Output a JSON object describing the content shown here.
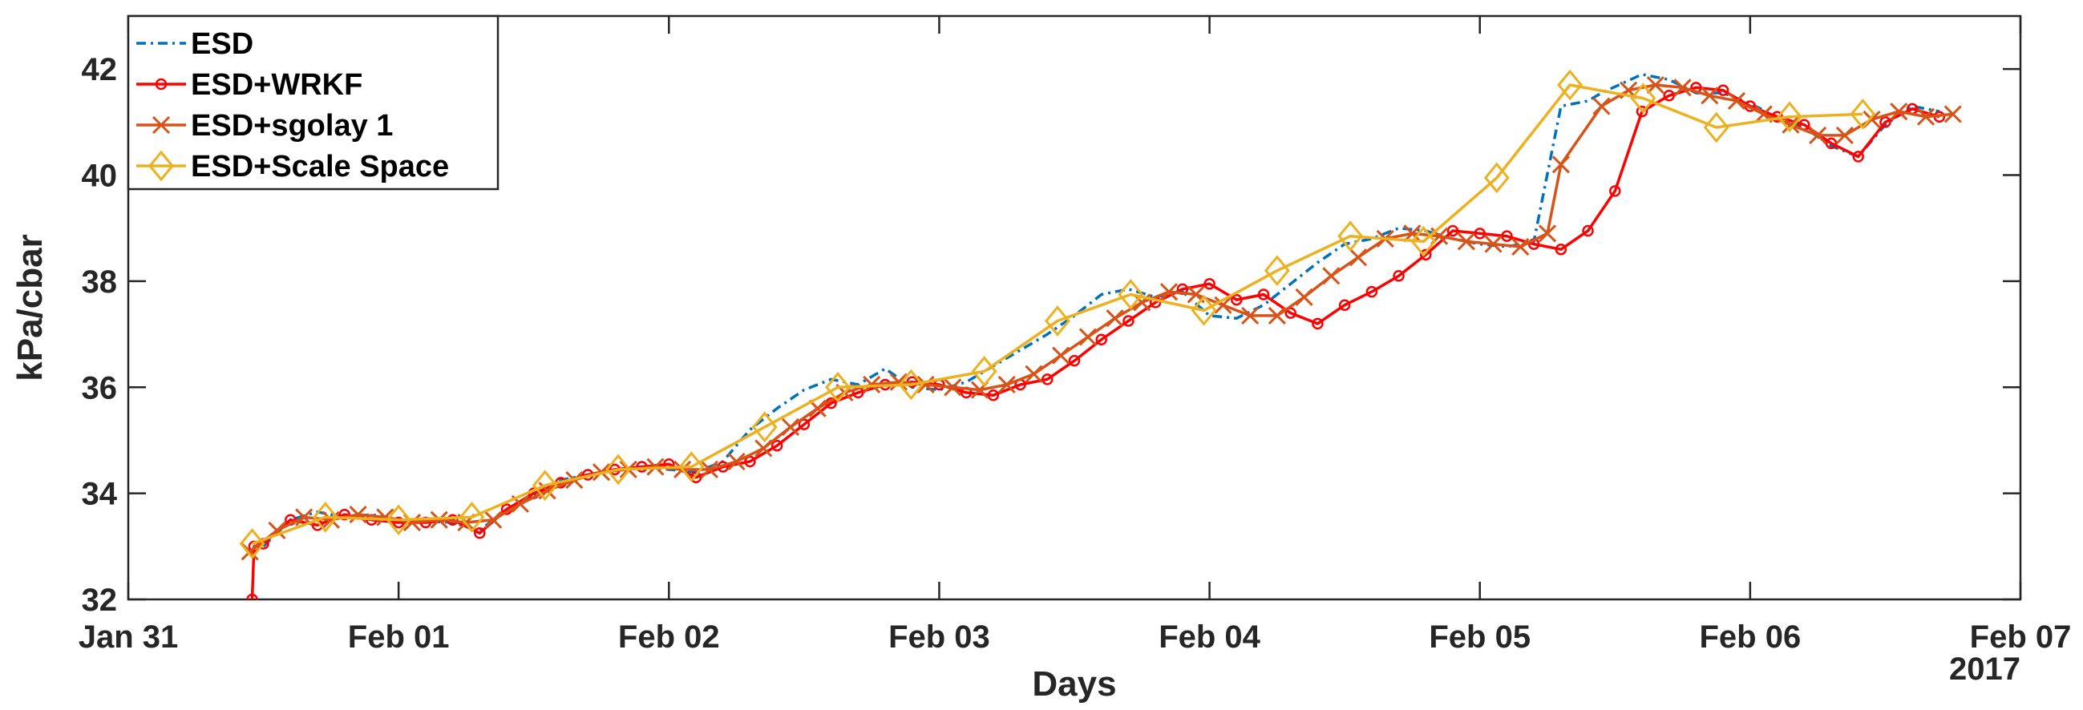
{
  "chart_data": {
    "type": "line",
    "xlabel": "Days",
    "ylabel": "kPa/cbar",
    "year_label": "2017",
    "x_unit": "day",
    "xlim": [
      "2017-01-31",
      "2017-02-07"
    ],
    "ylim": [
      32,
      43
    ],
    "x_ticks": [
      "2017-01-31",
      "2017-02-01",
      "2017-02-02",
      "2017-02-03",
      "2017-02-04",
      "2017-02-05",
      "2017-02-06",
      "2017-02-07"
    ],
    "x_tick_labels": [
      "Jan 31",
      "Feb 01",
      "Feb 02",
      "Feb 03",
      "Feb 04",
      "Feb 05",
      "Feb 06",
      "Feb 07"
    ],
    "y_ticks": [
      32,
      34,
      36,
      38,
      40,
      42
    ],
    "y_tick_labels": [
      "32",
      "34",
      "36",
      "38",
      "40",
      "42"
    ],
    "grid": false,
    "legend_position": "top-left",
    "series": [
      {
        "name": "ESD",
        "color": "#0072BD",
        "style": "dashdot",
        "marker": "none",
        "x": [
          "2017-01-31T12:00",
          "2017-01-31T14:24",
          "2017-01-31T16:48",
          "2017-01-31T19:12",
          "2017-01-31T21:36",
          "2017-02-01T00:00",
          "2017-02-01T04:48",
          "2017-02-01T07:12",
          "2017-02-01T09:36",
          "2017-02-01T12:00",
          "2017-02-01T14:24",
          "2017-02-01T16:48",
          "2017-02-01T19:12",
          "2017-02-01T21:36",
          "2017-02-02T02:24",
          "2017-02-02T04:48",
          "2017-02-02T07:12",
          "2017-02-02T09:36",
          "2017-02-02T12:00",
          "2017-02-02T14:24",
          "2017-02-02T16:48",
          "2017-02-02T19:12",
          "2017-02-02T21:36",
          "2017-02-03T00:00",
          "2017-02-03T02:24",
          "2017-02-03T04:48",
          "2017-02-03T07:12",
          "2017-02-03T09:36",
          "2017-02-03T12:00",
          "2017-02-03T14:24",
          "2017-02-03T16:48",
          "2017-02-03T19:12",
          "2017-02-03T21:36",
          "2017-02-04T00:00",
          "2017-02-04T02:24",
          "2017-02-04T04:48",
          "2017-02-04T07:12",
          "2017-02-04T09:36",
          "2017-02-04T12:00",
          "2017-02-04T14:24",
          "2017-02-04T16:48",
          "2017-02-04T19:12",
          "2017-02-04T21:36",
          "2017-02-05T00:00",
          "2017-02-05T02:24",
          "2017-02-05T04:48",
          "2017-02-05T07:12",
          "2017-02-05T09:36",
          "2017-02-05T10:48",
          "2017-02-05T14:24",
          "2017-02-05T16:48",
          "2017-02-05T19:12",
          "2017-02-05T21:36",
          "2017-02-06T00:00",
          "2017-02-06T02:24",
          "2017-02-06T04:48",
          "2017-02-06T07:12",
          "2017-02-06T09:36",
          "2017-02-06T12:00",
          "2017-02-06T14:24",
          "2017-02-06T16:48"
        ],
        "y": [
          33.0,
          33.5,
          33.65,
          33.55,
          33.6,
          33.5,
          33.45,
          33.3,
          33.7,
          33.95,
          34.25,
          34.35,
          34.45,
          34.5,
          34.4,
          34.6,
          35.2,
          35.6,
          35.95,
          36.15,
          36.05,
          36.35,
          36.0,
          35.95,
          36.1,
          36.4,
          36.7,
          37.0,
          37.35,
          37.75,
          37.85,
          37.7,
          37.8,
          37.35,
          37.3,
          37.55,
          37.95,
          38.35,
          38.7,
          38.8,
          39.0,
          38.95,
          38.8,
          38.7,
          38.65,
          38.75,
          41.3,
          41.4,
          41.55,
          41.9,
          41.8,
          41.55,
          41.55,
          41.35,
          41.1,
          40.9,
          40.55,
          40.35,
          40.95,
          41.3,
          41.2
        ]
      },
      {
        "name": "ESD+WRKF",
        "color": "#FF0000",
        "style": "solid",
        "marker": "circle",
        "x": [
          "2017-01-31T11:00",
          "2017-01-31T11:10",
          "2017-01-31T12:00",
          "2017-01-31T14:24",
          "2017-01-31T16:48",
          "2017-01-31T19:12",
          "2017-01-31T21:36",
          "2017-02-01T00:00",
          "2017-02-01T02:24",
          "2017-02-01T04:48",
          "2017-02-01T07:12",
          "2017-02-01T09:36",
          "2017-02-01T12:00",
          "2017-02-01T14:24",
          "2017-02-01T16:48",
          "2017-02-01T19:12",
          "2017-02-01T21:36",
          "2017-02-02T00:00",
          "2017-02-02T02:24",
          "2017-02-02T04:48",
          "2017-02-02T07:12",
          "2017-02-02T09:36",
          "2017-02-02T12:00",
          "2017-02-02T14:24",
          "2017-02-02T16:48",
          "2017-02-02T19:12",
          "2017-02-02T21:36",
          "2017-02-03T00:00",
          "2017-02-03T02:24",
          "2017-02-03T04:48",
          "2017-02-03T07:12",
          "2017-02-03T09:36",
          "2017-02-03T12:00",
          "2017-02-03T14:24",
          "2017-02-03T16:48",
          "2017-02-03T19:12",
          "2017-02-03T21:36",
          "2017-02-04T00:00",
          "2017-02-04T02:24",
          "2017-02-04T04:48",
          "2017-02-04T07:12",
          "2017-02-04T09:36",
          "2017-02-04T12:00",
          "2017-02-04T14:24",
          "2017-02-04T16:48",
          "2017-02-04T19:12",
          "2017-02-04T21:36",
          "2017-02-05T00:00",
          "2017-02-05T02:24",
          "2017-02-05T04:48",
          "2017-02-05T07:12",
          "2017-02-05T09:36",
          "2017-02-05T12:00",
          "2017-02-05T14:24",
          "2017-02-05T16:48",
          "2017-02-05T19:12",
          "2017-02-05T21:36",
          "2017-02-06T00:00",
          "2017-02-06T02:24",
          "2017-02-06T04:48",
          "2017-02-06T07:12",
          "2017-02-06T09:36",
          "2017-02-06T12:00",
          "2017-02-06T14:24",
          "2017-02-06T16:48"
        ],
        "y": [
          32.0,
          33.0,
          33.05,
          33.5,
          33.4,
          33.6,
          33.5,
          33.45,
          33.45,
          33.5,
          33.25,
          33.7,
          34.0,
          34.2,
          34.35,
          34.45,
          34.5,
          34.55,
          34.3,
          34.5,
          34.6,
          34.9,
          35.3,
          35.7,
          35.9,
          36.05,
          36.1,
          36.05,
          35.9,
          35.85,
          36.05,
          36.15,
          36.5,
          36.9,
          37.25,
          37.6,
          37.85,
          37.95,
          37.65,
          37.75,
          37.4,
          37.2,
          37.55,
          37.8,
          38.1,
          38.5,
          38.95,
          38.9,
          38.85,
          38.7,
          38.6,
          38.95,
          39.7,
          41.2,
          41.5,
          41.65,
          41.6,
          41.3,
          41.1,
          40.95,
          40.6,
          40.35,
          41.0,
          41.25,
          41.1
        ]
      },
      {
        "name": "ESD+sgolay 1",
        "color": "#D95319",
        "style": "solid",
        "marker": "x",
        "x": [
          "2017-01-31T10:48",
          "2017-01-31T13:12",
          "2017-01-31T15:36",
          "2017-01-31T18:00",
          "2017-01-31T20:24",
          "2017-01-31T22:48",
          "2017-02-01T01:12",
          "2017-02-01T03:36",
          "2017-02-01T06:00",
          "2017-02-01T08:24",
          "2017-02-01T10:48",
          "2017-02-01T13:12",
          "2017-02-01T15:36",
          "2017-02-01T18:00",
          "2017-02-01T20:24",
          "2017-02-01T22:48",
          "2017-02-02T01:12",
          "2017-02-02T03:36",
          "2017-02-02T06:00",
          "2017-02-02T08:24",
          "2017-02-02T10:48",
          "2017-02-02T13:12",
          "2017-02-02T15:36",
          "2017-02-02T18:00",
          "2017-02-02T20:24",
          "2017-02-02T22:48",
          "2017-02-03T01:12",
          "2017-02-03T03:36",
          "2017-02-03T06:00",
          "2017-02-03T08:24",
          "2017-02-03T10:48",
          "2017-02-03T13:12",
          "2017-02-03T15:36",
          "2017-02-03T18:00",
          "2017-02-03T20:24",
          "2017-02-03T22:48",
          "2017-02-04T01:12",
          "2017-02-04T03:36",
          "2017-02-04T06:00",
          "2017-02-04T08:24",
          "2017-02-04T10:48",
          "2017-02-04T13:12",
          "2017-02-04T15:36",
          "2017-02-04T18:00",
          "2017-02-04T20:24",
          "2017-02-04T22:48",
          "2017-02-05T01:12",
          "2017-02-05T03:36",
          "2017-02-05T06:00",
          "2017-02-05T07:12",
          "2017-02-05T10:48",
          "2017-02-05T13:12",
          "2017-02-05T15:36",
          "2017-02-05T18:00",
          "2017-02-05T20:24",
          "2017-02-05T22:48",
          "2017-02-06T01:12",
          "2017-02-06T03:36",
          "2017-02-06T06:00",
          "2017-02-06T08:24",
          "2017-02-06T10:48",
          "2017-02-06T13:12",
          "2017-02-06T15:36",
          "2017-02-06T18:00"
        ],
        "y": [
          32.9,
          33.3,
          33.55,
          33.5,
          33.6,
          33.55,
          33.45,
          33.5,
          33.45,
          33.5,
          33.8,
          34.05,
          34.25,
          34.4,
          34.45,
          34.5,
          34.45,
          34.45,
          34.6,
          34.85,
          35.25,
          35.6,
          35.9,
          36.05,
          36.1,
          36.05,
          36.0,
          35.95,
          36.05,
          36.25,
          36.6,
          36.95,
          37.3,
          37.6,
          37.8,
          37.75,
          37.55,
          37.35,
          37.35,
          37.7,
          38.1,
          38.45,
          38.8,
          38.9,
          38.85,
          38.75,
          38.7,
          38.65,
          38.9,
          40.2,
          41.3,
          41.6,
          41.7,
          41.65,
          41.5,
          41.4,
          41.15,
          40.95,
          40.75,
          40.75,
          41.05,
          41.2,
          41.1,
          41.15
        ]
      },
      {
        "name": "ESD+Scale Space",
        "color": "#EDB120",
        "style": "solid",
        "marker": "diamond",
        "x": [
          "2017-01-31T11:00",
          "2017-01-31T17:30",
          "2017-02-01T00:00",
          "2017-02-01T06:30",
          "2017-02-01T13:00",
          "2017-02-01T19:30",
          "2017-02-02T02:00",
          "2017-02-02T08:30",
          "2017-02-02T15:00",
          "2017-02-02T21:30",
          "2017-02-03T04:00",
          "2017-02-03T10:30",
          "2017-02-03T17:00",
          "2017-02-03T23:30",
          "2017-02-04T06:00",
          "2017-02-04T12:30",
          "2017-02-04T19:00",
          "2017-02-05T01:30",
          "2017-02-05T08:00",
          "2017-02-05T14:30",
          "2017-02-05T21:00",
          "2017-02-06T03:30",
          "2017-02-06T10:00"
        ],
        "y": [
          33.05,
          33.55,
          33.5,
          33.55,
          34.15,
          34.45,
          34.5,
          35.25,
          36.0,
          36.05,
          36.3,
          37.25,
          37.75,
          37.45,
          38.2,
          38.85,
          38.75,
          39.95,
          41.7,
          41.45,
          40.9,
          41.1,
          41.15
        ]
      }
    ]
  }
}
